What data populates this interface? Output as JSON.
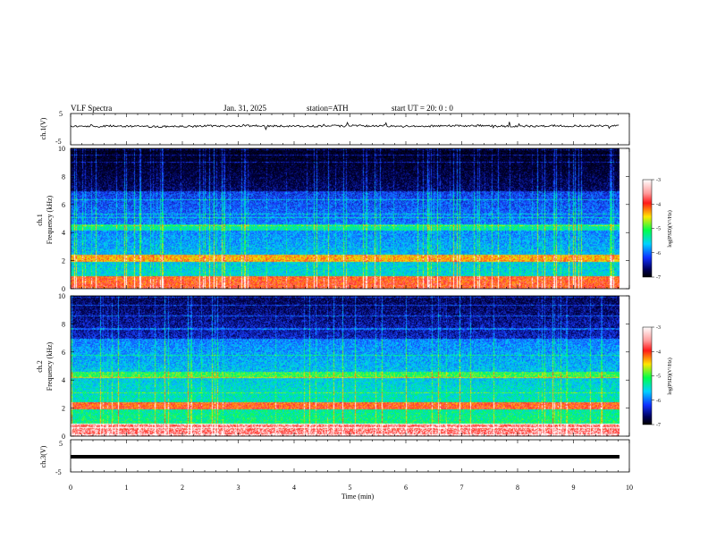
{
  "header": {
    "title": "VLF  Spectra",
    "date": "Jan. 31, 2025",
    "station": "station=ATH",
    "start": "start  UT  =    20: 0   : 0"
  },
  "colors": {
    "colormap": [
      "#ffffff",
      "#ff2a2a",
      "#ffe000",
      "#00ff5a",
      "#00c8ff",
      "#1a3cff",
      "#00004a",
      "#000000"
    ],
    "trace": "#000000",
    "background": "#ffffff"
  },
  "chart_data": [
    {
      "type": "line",
      "ylabel": "ch.1(V)",
      "ylim": [
        -5,
        5
      ],
      "yticks": [
        "5",
        "-5"
      ],
      "xlim": [
        0,
        10
      ],
      "series": [
        {
          "values": []
        }
      ]
    },
    {
      "type": "heatmap",
      "ylabel": "Frequency (kHz)",
      "channel_label": "ch.1",
      "ylim": [
        0,
        10
      ],
      "yticks": [
        "0",
        "2",
        "4",
        "6",
        "8",
        "10"
      ],
      "xlim": [
        0,
        9.8
      ],
      "colorbar": {
        "label": "log(PSD)(V²/Hz)",
        "range": [
          -7,
          -3
        ],
        "ticks": [
          "-3",
          "-4",
          "-5",
          "-6",
          "-7"
        ]
      }
    },
    {
      "type": "heatmap",
      "ylabel": "Frequency (kHz)",
      "channel_label": "ch.2",
      "ylim": [
        0,
        10
      ],
      "yticks": [
        "0",
        "2",
        "4",
        "6",
        "8",
        "10"
      ],
      "xlim": [
        0,
        9.8
      ],
      "colorbar": {
        "label": "log(PSD)(V²/Hz)",
        "range": [
          -7,
          -3
        ],
        "ticks": [
          "-3",
          "-4",
          "-5",
          "-6",
          "-7"
        ]
      }
    },
    {
      "type": "line",
      "ylabel": "ch.3(V)",
      "ylim": [
        -5,
        5
      ],
      "yticks": [
        "5",
        "-5"
      ],
      "xlim": [
        0,
        10
      ],
      "series": [
        {
          "values": []
        }
      ]
    }
  ],
  "xaxis": {
    "label": "Time  (min)",
    "ticks": [
      "0",
      "1",
      "2",
      "3",
      "4",
      "5",
      "6",
      "7",
      "8",
      "9",
      "10"
    ]
  }
}
